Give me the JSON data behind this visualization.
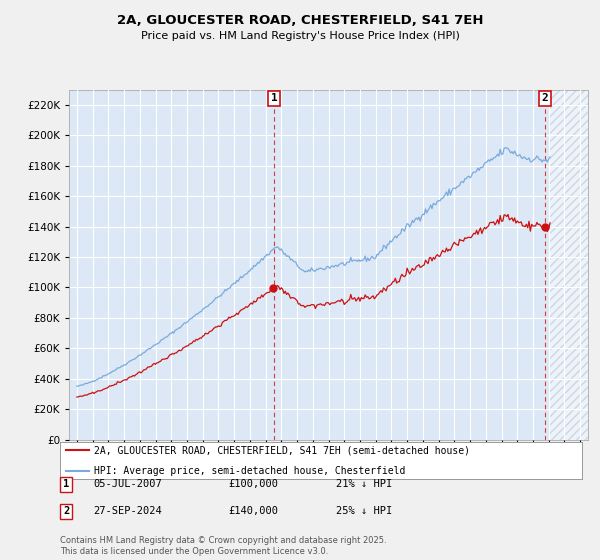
{
  "title": "2A, GLOUCESTER ROAD, CHESTERFIELD, S41 7EH",
  "subtitle": "Price paid vs. HM Land Registry's House Price Index (HPI)",
  "background_color": "#f0f0f0",
  "plot_background": "#dce8f5",
  "future_hatch_color": "#c0c8d8",
  "grid_color": "white",
  "hpi_color": "#7aaadd",
  "price_color": "#cc1111",
  "sale1_x": 2007.54,
  "sale2_x": 2024.75,
  "sale1_price": 100000,
  "sale2_price": 140000,
  "sale1_date": "05-JUL-2007",
  "sale1_price_str": "£100,000",
  "sale1_note": "21% ↓ HPI",
  "sale2_date": "27-SEP-2024",
  "sale2_price_str": "£140,000",
  "sale2_note": "25% ↓ HPI",
  "legend_label1": "2A, GLOUCESTER ROAD, CHESTERFIELD, S41 7EH (semi-detached house)",
  "legend_label2": "HPI: Average price, semi-detached house, Chesterfield",
  "footer": "Contains HM Land Registry data © Crown copyright and database right 2025.\nThis data is licensed under the Open Government Licence v3.0.",
  "ylim": [
    0,
    230000
  ],
  "yticks": [
    0,
    20000,
    40000,
    60000,
    80000,
    100000,
    120000,
    140000,
    160000,
    180000,
    200000,
    220000
  ],
  "xmin": 1994.5,
  "xmax": 2027.5,
  "future_start": 2025.0
}
